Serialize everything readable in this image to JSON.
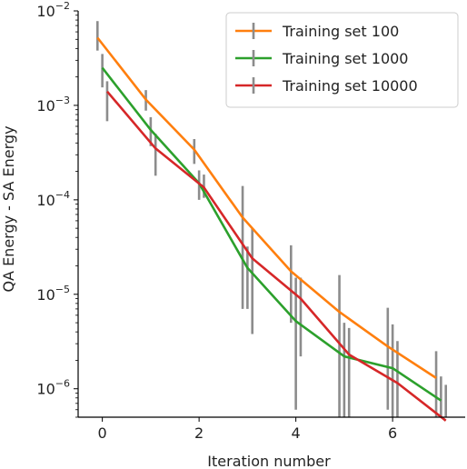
{
  "chart_data": {
    "type": "line",
    "xlabel": "Iteration number",
    "ylabel": "QA Energy - SA Energy",
    "yscale": "log",
    "xlim": [
      -0.5,
      7.5
    ],
    "ylim": [
      5e-07,
      0.01
    ],
    "xticks": [
      0,
      2,
      4,
      6
    ],
    "xtick_labels": [
      "0",
      "2",
      "4",
      "6"
    ],
    "yticks": [
      1e-06,
      1e-05,
      0.0001,
      0.001,
      0.01
    ],
    "ytick_labels": [
      {
        "base": "10",
        "exp": "−6"
      },
      {
        "base": "10",
        "exp": "−5"
      },
      {
        "base": "10",
        "exp": "−4"
      },
      {
        "base": "10",
        "exp": "−3"
      },
      {
        "base": "10",
        "exp": "−2"
      }
    ],
    "grid": false,
    "legend_position": "top-right",
    "errorbar_color": "#8c8c8c",
    "series": [
      {
        "name": "Training set 100",
        "color": "#ff7f0e",
        "x": [
          -0.1,
          0.9,
          1.9,
          2.9,
          3.9,
          4.9,
          5.9,
          6.9
        ],
        "y": [
          0.0052,
          0.00115,
          0.00034,
          6.5e-05,
          1.75e-05,
          6.5e-06,
          2.8e-06,
          1.3e-06
        ],
        "yerr_low": [
          0.0038,
          0.00088,
          0.00024,
          7e-06,
          5e-06,
          4e-07,
          6e-07,
          3e-07
        ],
        "yerr_high": [
          0.0078,
          0.00145,
          0.00044,
          0.00014,
          3.3e-05,
          1.6e-05,
          7.2e-06,
          2.5e-06
        ]
      },
      {
        "name": "Training set 1000",
        "color": "#2ca02c",
        "x": [
          0,
          1,
          2,
          3,
          4,
          5,
          6,
          7
        ],
        "y": [
          0.0025,
          0.00055,
          0.00015,
          1.9e-05,
          5.2e-06,
          2.2e-06,
          1.65e-06,
          7.5e-07
        ],
        "yerr_low": [
          0.00155,
          0.00037,
          0.0001,
          7e-06,
          6e-07,
          4e-07,
          4e-07,
          4e-07
        ],
        "yerr_high": [
          0.0035,
          0.00075,
          0.000205,
          3.2e-05,
          1.5e-05,
          5e-06,
          4.8e-06,
          1.35e-06
        ]
      },
      {
        "name": "Training set 10000",
        "color": "#d62728",
        "x": [
          0.1,
          1.1,
          2.1,
          3.1,
          4.1,
          5.1,
          6.1,
          7.1
        ],
        "y": [
          0.0014,
          0.00035,
          0.000135,
          2.4e-05,
          9e-06,
          2.3e-06,
          1.15e-06,
          4.6e-07
        ],
        "yerr_low": [
          0.00068,
          0.00018,
          0.000105,
          3.8e-06,
          2.2e-06,
          4e-07,
          4e-07,
          4e-07
        ],
        "yerr_high": [
          0.0018,
          0.0005,
          0.000185,
          5e-05,
          1.5e-05,
          4.4e-06,
          3.2e-06,
          1.1e-06
        ]
      }
    ]
  }
}
